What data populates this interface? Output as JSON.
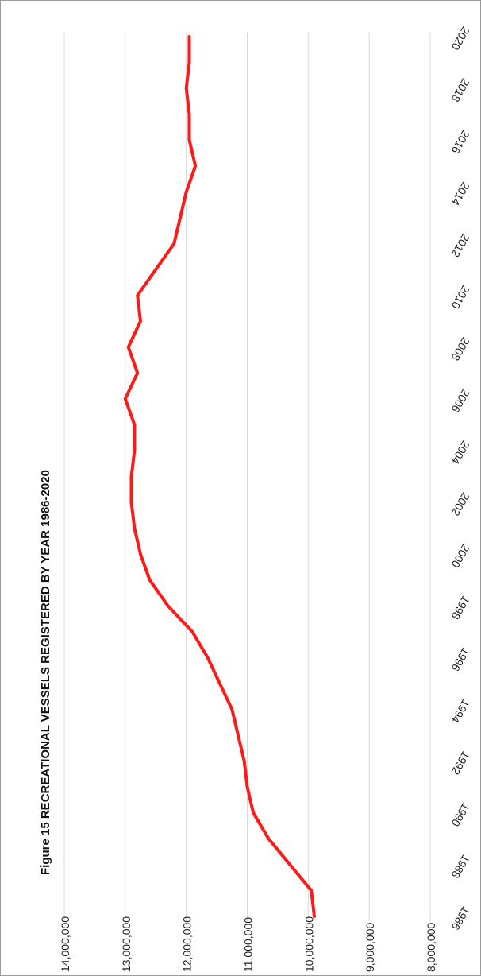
{
  "chart_data": {
    "type": "line",
    "orientation": "rotated 90 degrees clockwise (year axis runs bottom-to-top)",
    "title": "Figure 15 RECREATIONAL VESSELS REGISTERED BY YEAR 1986-2020",
    "xlabel": "",
    "ylabel": "",
    "ylim": [
      8000000,
      14000000
    ],
    "yticks": [
      "8,000,000",
      "9,000,000",
      "10,000,000",
      "11,000,000",
      "12,000,000",
      "13,000,000",
      "14,000,000"
    ],
    "ytick_values": [
      8000000,
      9000000,
      10000000,
      11000000,
      12000000,
      13000000,
      14000000
    ],
    "xticks": [
      "1986",
      "1988",
      "1990",
      "1992",
      "1994",
      "1996",
      "1998",
      "2000",
      "2002",
      "2004",
      "2006",
      "2008",
      "2010",
      "2012",
      "2014",
      "2016",
      "2018",
      "2020"
    ],
    "xlim": [
      1986,
      2020
    ],
    "grid": "horizontal value gridlines",
    "line_color": "#ff1a1a",
    "series": [
      {
        "x": [
          1986,
          1987,
          1988,
          1989,
          1990,
          1991,
          1992,
          1993,
          1994,
          1995,
          1996,
          1997,
          1998,
          1999,
          2000,
          2001,
          2002,
          2003,
          2004,
          2005,
          2006,
          2007,
          2008,
          2009,
          2010,
          2011,
          2012,
          2013,
          2014,
          2015,
          2016,
          2017,
          2018,
          2019,
          2020
        ],
        "values": [
          9900000,
          9950000,
          10300000,
          10650000,
          10900000,
          11000000,
          11050000,
          11150000,
          11250000,
          11450000,
          11650000,
          11900000,
          12300000,
          12600000,
          12750000,
          12850000,
          12900000,
          12900000,
          12850000,
          12850000,
          13000000,
          12800000,
          12950000,
          12750000,
          12800000,
          12500000,
          12200000,
          12100000,
          12000000,
          11850000,
          11950000,
          11950000,
          12000000,
          11950000,
          11950000
        ]
      }
    ]
  }
}
